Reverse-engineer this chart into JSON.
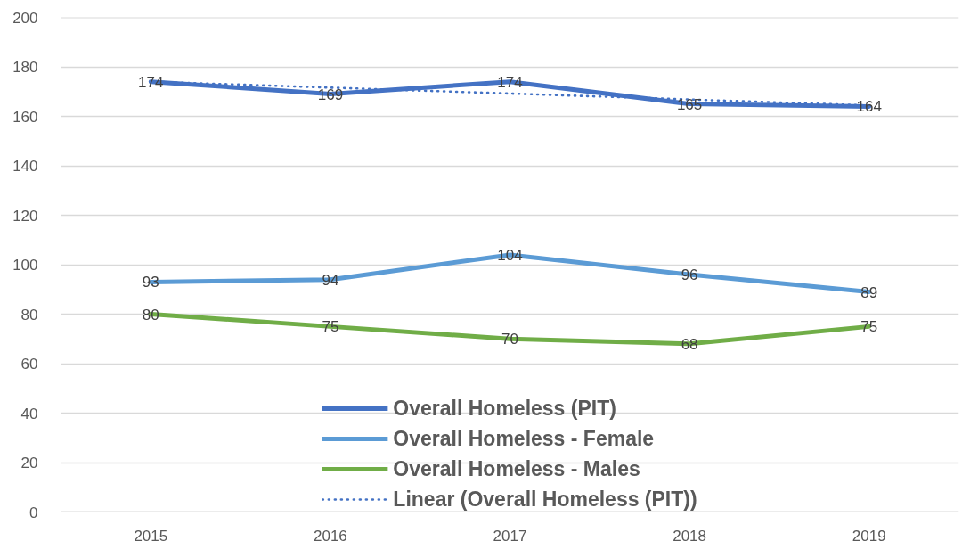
{
  "chart_data": {
    "type": "line",
    "categories": [
      "2015",
      "2016",
      "2017",
      "2018",
      "2019"
    ],
    "ylim": [
      0,
      200
    ],
    "yticks": [
      0,
      20,
      40,
      60,
      80,
      100,
      120,
      140,
      160,
      180,
      200
    ],
    "grid": "y",
    "legend": "bottom",
    "series": [
      {
        "name": "Overall Homeless (PIT)",
        "color": "#4472c4",
        "values": [
          174,
          169,
          174,
          165,
          164
        ],
        "value_labels": [
          "174",
          "169",
          "174",
          "165",
          "164"
        ]
      },
      {
        "name": "Overall Homeless - Female",
        "color": "#5b9bd5",
        "values": [
          93,
          94,
          104,
          96,
          89
        ],
        "value_labels": [
          "93",
          "94",
          "104",
          "96",
          "89"
        ]
      },
      {
        "name": "Overall Homeless - Males",
        "color": "#70ad47",
        "values": [
          80,
          75,
          70,
          68,
          75
        ],
        "value_labels": [
          "80",
          "75",
          "70",
          "68",
          "75"
        ]
      },
      {
        "name": "Linear (Overall Homeless (PIT))",
        "type": "line",
        "line_style": "dotted",
        "color": "#4472c4",
        "values": [
          174,
          171.6,
          169.2,
          166.8,
          164.4
        ]
      }
    ]
  }
}
